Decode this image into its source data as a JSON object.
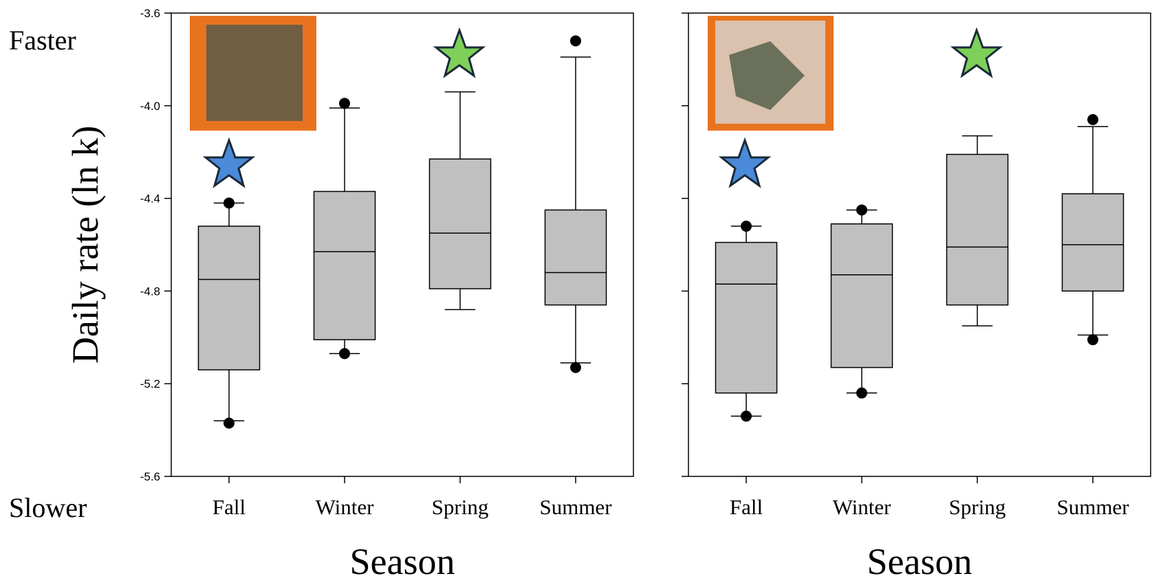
{
  "chart_data": [
    {
      "type": "box",
      "ylabel": "Daily rate (ln k)",
      "xlabel": "Season",
      "annotations": [
        "Faster",
        "Slower"
      ],
      "categories": [
        "Fall",
        "Winter",
        "Spring",
        "Summer"
      ],
      "color": "#c0c0c0",
      "ylim": [
        -5.6,
        -3.6
      ],
      "yticks": [
        -5.6,
        -5.2,
        -4.8,
        -4.4,
        {
          "value": -4,
          "label": "-4.0"
        },
        -3.6
      ],
      "ytick_labels": true,
      "boxes": [
        {
          "whislo": -5.36,
          "q1": -5.14,
          "med": -4.75,
          "q3": -4.52,
          "whishi": -4.42,
          "fliers": [
            -4.42,
            -5.37
          ]
        },
        {
          "whislo": -5.07,
          "q1": -5.01,
          "med": -4.63,
          "q3": -4.37,
          "whishi": -4.01,
          "fliers": [
            -3.99,
            -5.07
          ]
        },
        {
          "whislo": -4.88,
          "q1": -4.79,
          "med": -4.55,
          "q3": -4.23,
          "whishi": -3.94,
          "fliers": []
        },
        {
          "whislo": -5.11,
          "q1": -4.86,
          "med": -4.72,
          "q3": -4.45,
          "whishi": -3.79,
          "fliers": [
            -3.72,
            -5.13
          ]
        }
      ]
    },
    {
      "type": "box",
      "xlabel": "Season",
      "categories": [
        "Fall",
        "Winter",
        "Spring",
        "Summer"
      ],
      "color": "#c0c0c0",
      "ylim": [
        -5.6,
        -3.6
      ],
      "yticks": [
        -5.6,
        -5.2,
        -4.8,
        -4.4,
        -4,
        -3.6
      ],
      "ytick_labels": false,
      "boxes": [
        {
          "whislo": -5.34,
          "q1": -5.24,
          "med": -4.77,
          "q3": -4.59,
          "whishi": -4.52,
          "fliers": [
            -4.52,
            -5.34
          ]
        },
        {
          "whislo": -5.24,
          "q1": -5.13,
          "med": -4.73,
          "q3": -4.51,
          "whishi": -4.45,
          "fliers": [
            -4.45,
            -5.24
          ]
        },
        {
          "whislo": -4.95,
          "q1": -4.86,
          "med": -4.61,
          "q3": -4.21,
          "whishi": -4.13,
          "fliers": []
        },
        {
          "whislo": -4.99,
          "q1": -4.8,
          "med": -4.6,
          "q3": -4.38,
          "whishi": -4.09,
          "fliers": [
            -4.06,
            -5.01
          ]
        }
      ]
    }
  ]
}
